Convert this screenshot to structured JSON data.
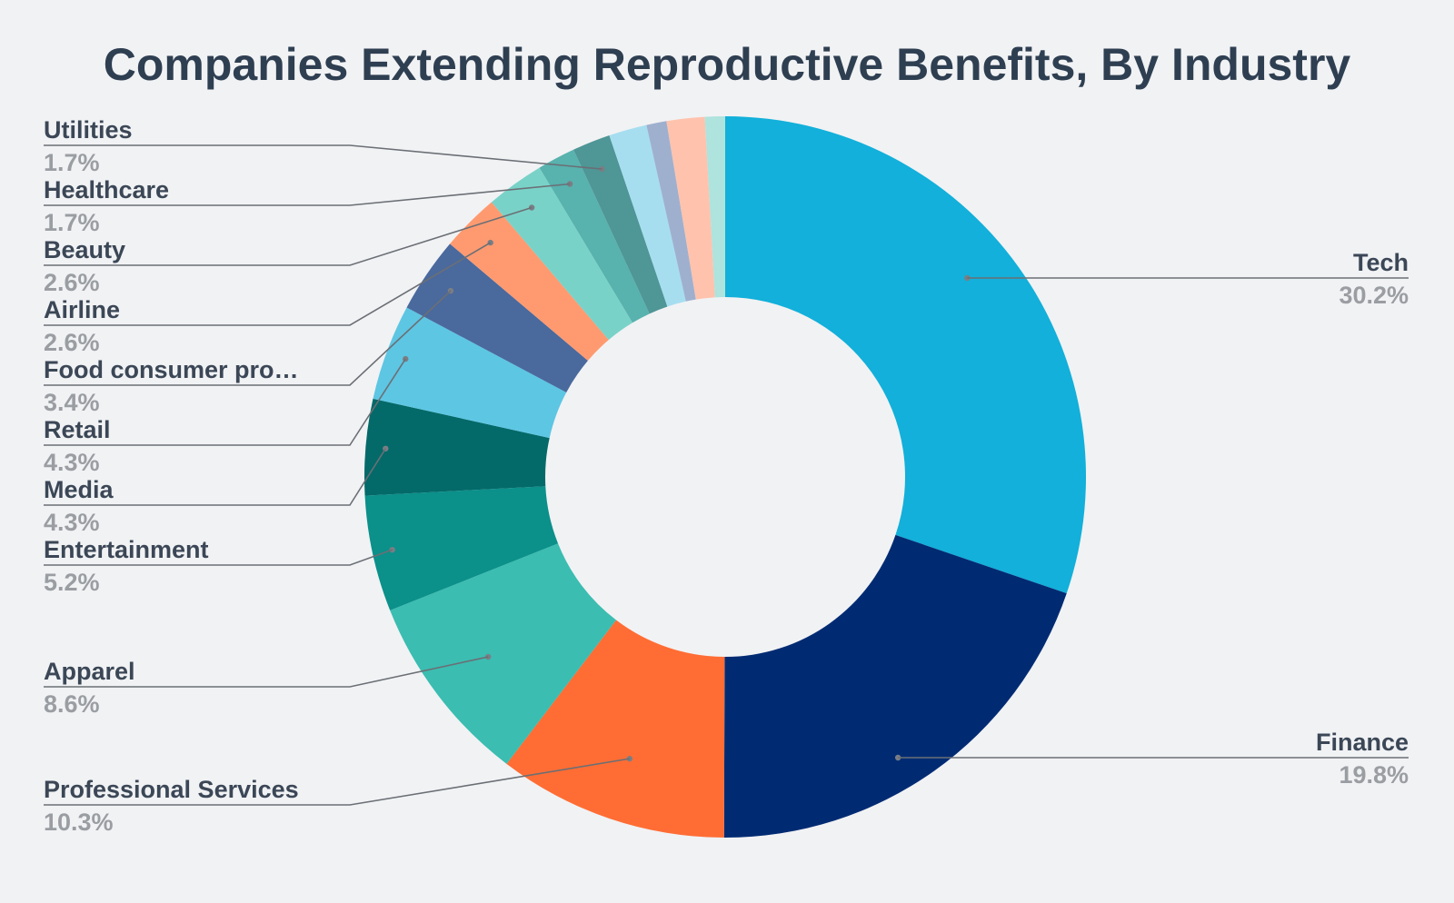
{
  "chart_data": {
    "type": "pie",
    "subtype": "donut",
    "title": "Companies Extending Reproductive Benefits, By Industry",
    "slices": [
      {
        "label": "Tech",
        "value": 30.2,
        "display": "30.2%",
        "color": "#12b0da"
      },
      {
        "label": "Finance",
        "value": 19.8,
        "display": "19.8%",
        "color": "#002b73"
      },
      {
        "label": "Professional Services",
        "value": 10.3,
        "display": "10.3%",
        "color": "#ff6d34"
      },
      {
        "label": "Apparel",
        "value": 8.6,
        "display": "8.6%",
        "color": "#3bbdb1"
      },
      {
        "label": "Entertainment",
        "value": 5.2,
        "display": "5.2%",
        "color": "#0b908a"
      },
      {
        "label": "Media",
        "value": 4.3,
        "display": "4.3%",
        "color": "#036a69"
      },
      {
        "label": "Retail",
        "value": 4.3,
        "display": "4.3%",
        "color": "#5dc6e3"
      },
      {
        "label": "Food consumer pro…",
        "value": 3.4,
        "display": "3.4%",
        "color": "#4a699d"
      },
      {
        "label": "Airline",
        "value": 2.6,
        "display": "2.6%",
        "color": "#ff9a70"
      },
      {
        "label": "Beauty",
        "value": 2.6,
        "display": "2.6%",
        "color": "#79d2c8"
      },
      {
        "label": "Healthcare",
        "value": 1.7,
        "display": "1.7%",
        "color": "#58b2ae"
      },
      {
        "label": "Utilities",
        "value": 1.7,
        "display": "1.7%",
        "color": "#4f9696"
      },
      {
        "label": "",
        "value": 1.7,
        "display": "",
        "color": "#a6def0"
      },
      {
        "label": "",
        "value": 0.9,
        "display": "",
        "color": "#9fb0cf"
      },
      {
        "label": "",
        "value": 1.7,
        "display": "",
        "color": "#ffc3ad"
      },
      {
        "label": "",
        "value": 0.9,
        "display": "",
        "color": "#afe3dd"
      }
    ],
    "legend": "none",
    "labels": "outside with leader lines"
  }
}
